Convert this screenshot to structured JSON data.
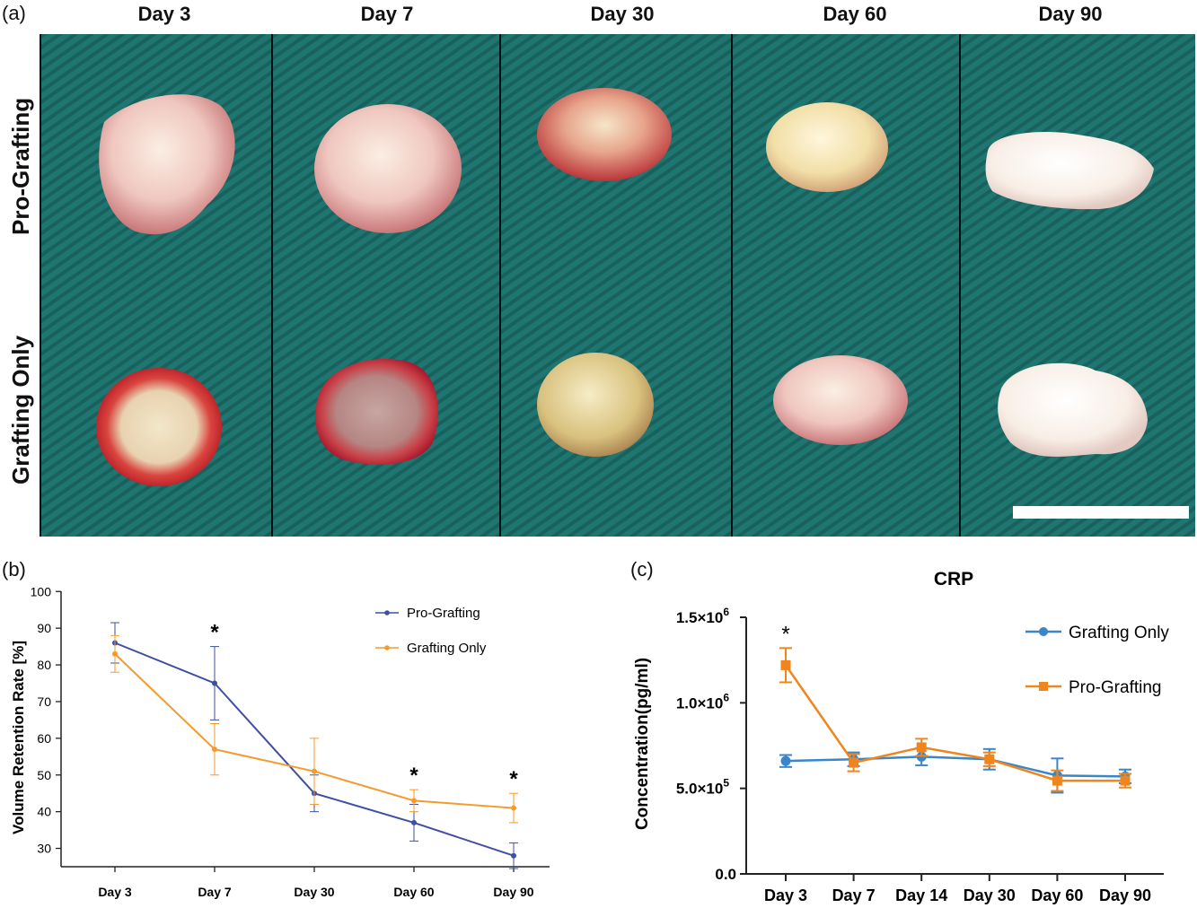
{
  "panel_labels": {
    "a": "(a)",
    "b": "(b)",
    "c": "(c)"
  },
  "photo_panel": {
    "columns": [
      "Day 3",
      "Day 7",
      "Day 30",
      "Day 60",
      "Day 90"
    ],
    "rows": [
      "Pro-Grafting",
      "Grafting Only"
    ],
    "background_color": "#1f7570",
    "scale_bar_color": "#ffffff"
  },
  "chart_data": [
    {
      "type": "line",
      "ylabel": "Volume Retention Rate [%]",
      "xlabel": "",
      "categories": [
        "Day 3",
        "Day 7",
        "Day 30",
        "Day 60",
        "Day 90"
      ],
      "ylim": [
        25,
        100
      ],
      "yticks": [
        "30",
        "40",
        "50",
        "60",
        "70",
        "80",
        "90",
        "100"
      ],
      "grid": false,
      "legend_position": "top-right",
      "series": [
        {
          "name": "Pro-Grafting",
          "color": "#3f4fa3",
          "values": [
            86,
            75,
            45,
            37,
            28
          ],
          "errors": [
            5.5,
            10,
            5,
            5,
            3.5
          ]
        },
        {
          "name": "Grafting Only",
          "color": "#f49a2e",
          "values": [
            83,
            57,
            51,
            43,
            41
          ],
          "errors": [
            5,
            7,
            9,
            3,
            4
          ]
        }
      ],
      "annotations": [
        {
          "category": "Day 7",
          "text": "*"
        },
        {
          "category": "Day 60",
          "text": "*"
        },
        {
          "category": "Day 90",
          "text": "*"
        }
      ]
    },
    {
      "type": "line",
      "title": "CRP",
      "ylabel": "Concentration(pg/ml)",
      "xlabel": "",
      "categories": [
        "Day 3",
        "Day 7",
        "Day 14",
        "Day 30",
        "Day 60",
        "Day 90"
      ],
      "ylim": [
        0,
        1500000
      ],
      "yticks": [
        {
          "value": 0,
          "base": "0.0",
          "exp": ""
        },
        {
          "value": 500000,
          "base": "5.0×10",
          "exp": "5"
        },
        {
          "value": 1000000,
          "base": "1.0×10",
          "exp": "6"
        },
        {
          "value": 1500000,
          "base": "1.5×10",
          "exp": "6"
        }
      ],
      "grid": false,
      "legend_position": "top-right",
      "series": [
        {
          "name": "Grafting Only",
          "color": "#3a86c8",
          "marker": "circle",
          "values": [
            660000,
            670000,
            685000,
            670000,
            575000,
            570000
          ],
          "errors": [
            35000,
            40000,
            50000,
            60000,
            100000,
            40000
          ]
        },
        {
          "name": "Pro-Grafting",
          "color": "#f0851e",
          "marker": "square",
          "values": [
            1220000,
            650000,
            740000,
            670000,
            545000,
            545000
          ],
          "errors": [
            100000,
            50000,
            50000,
            40000,
            60000,
            40000
          ]
        }
      ],
      "annotations": [
        {
          "category": "Day 3",
          "text": "*"
        }
      ]
    }
  ]
}
